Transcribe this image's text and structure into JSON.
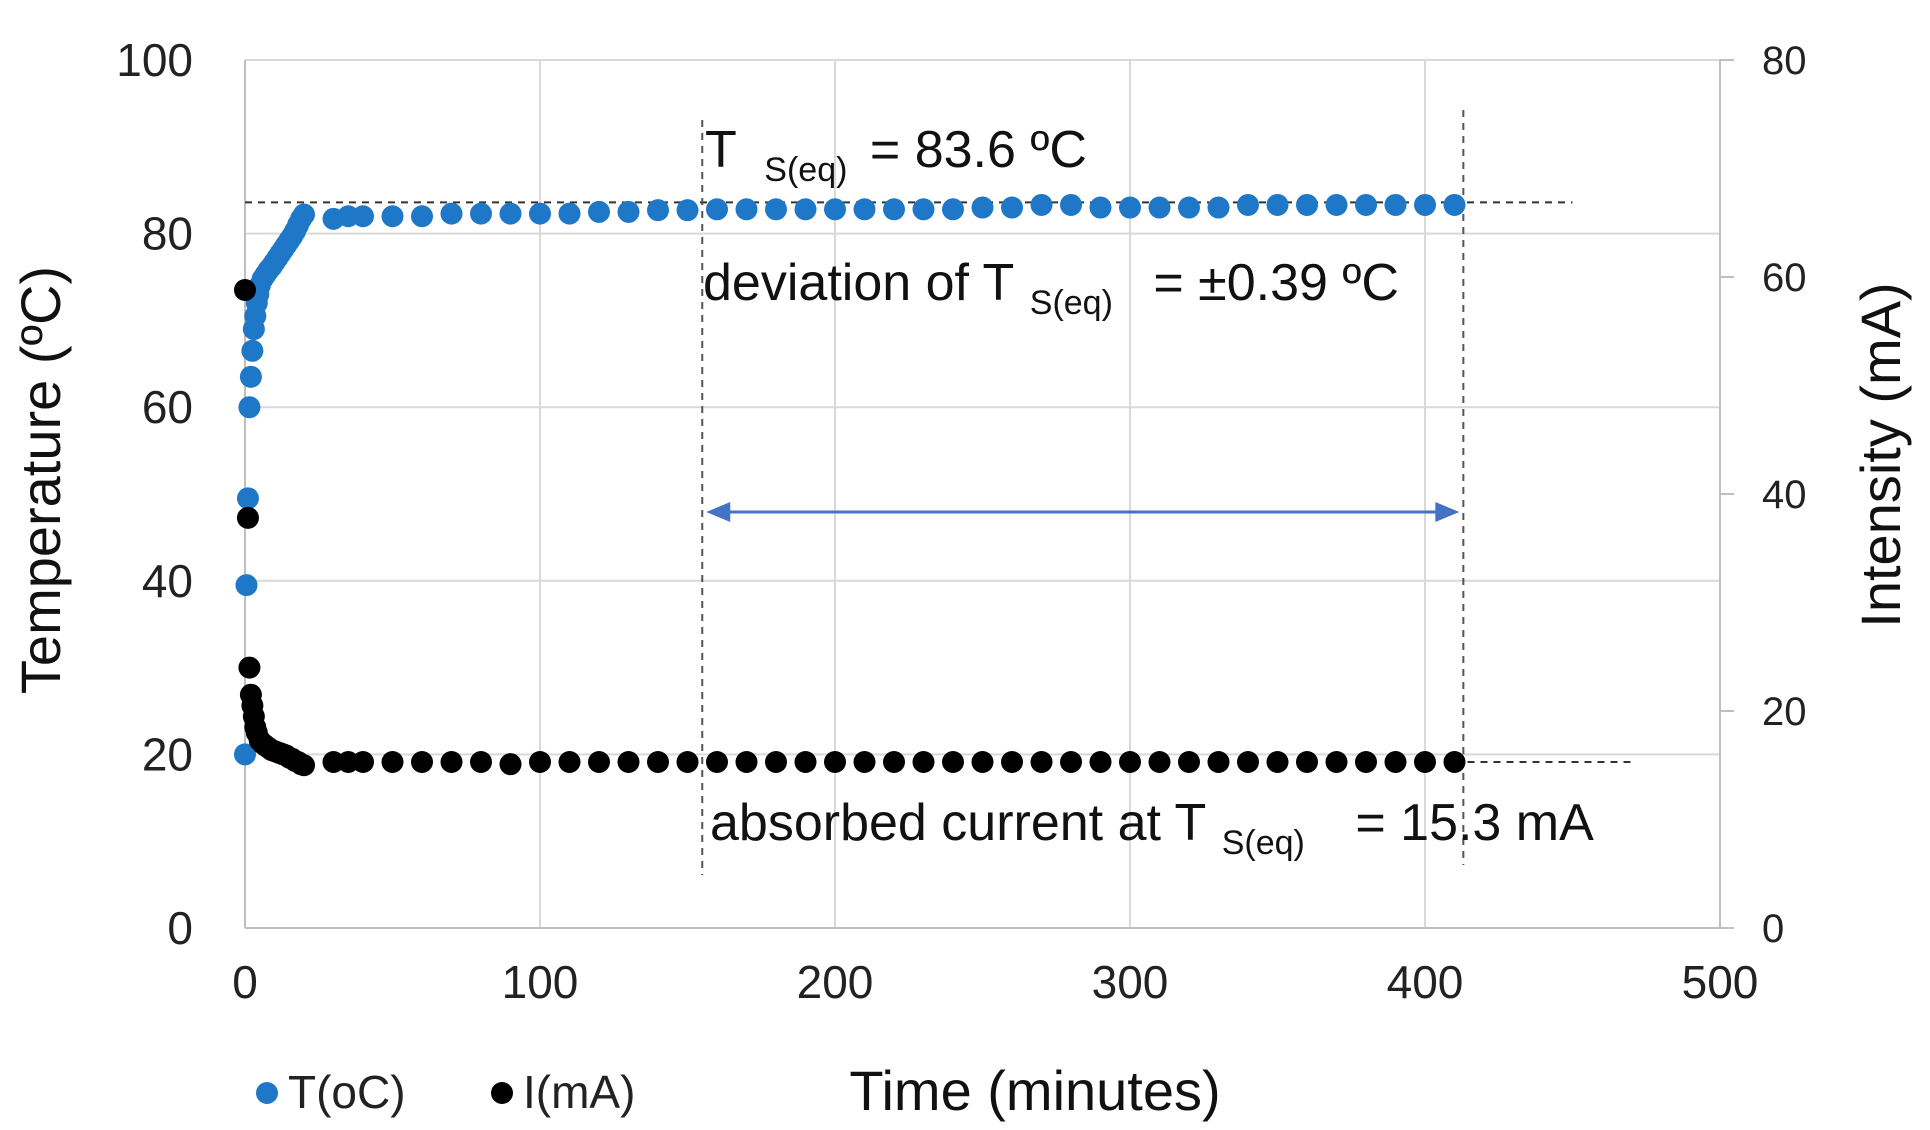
{
  "chart_data": {
    "type": "scatter",
    "xlabel": "Time (minutes)",
    "ylabel_left": "Temperature (ºC)",
    "ylabel_right": "Intensity (mA)",
    "xlim": [
      0,
      500
    ],
    "ylim_left": [
      0,
      100
    ],
    "ylim_right": [
      0,
      80
    ],
    "x_ticks": [
      "0",
      "100",
      "200",
      "300",
      "400",
      "500"
    ],
    "y_left_ticks": [
      "0",
      "20",
      "40",
      "60",
      "80",
      "100"
    ],
    "y_right_ticks": [
      "0",
      "20",
      "40",
      "60",
      "80"
    ],
    "grid": true,
    "legend_position": "bottom-left",
    "series": [
      {
        "name": "T(oC)",
        "color": "#1f77c8",
        "axis": "left",
        "x": [
          0,
          0.5,
          1,
          1.5,
          2,
          2.5,
          3,
          3.5,
          4,
          4.5,
          5,
          6,
          7,
          8,
          9,
          10,
          11,
          12,
          13,
          14,
          15,
          16,
          17,
          18,
          19,
          20,
          30,
          35,
          40,
          50,
          60,
          70,
          80,
          90,
          100,
          110,
          120,
          130,
          140,
          150,
          160,
          170,
          180,
          190,
          200,
          210,
          220,
          230,
          240,
          250,
          260,
          270,
          280,
          290,
          300,
          310,
          320,
          330,
          340,
          350,
          360,
          370,
          380,
          390,
          400,
          410
        ],
        "y": [
          20,
          39.5,
          49.5,
          60,
          63.5,
          66.5,
          69,
          70.5,
          72,
          73,
          74,
          74.8,
          75.3,
          75.8,
          76.2,
          76.7,
          77.2,
          77.7,
          78.2,
          78.7,
          79.2,
          79.7,
          80.3,
          81,
          81.7,
          82.2,
          81.7,
          82,
          82,
          82,
          82,
          82.3,
          82.3,
          82.3,
          82.3,
          82.3,
          82.5,
          82.5,
          82.7,
          82.7,
          82.8,
          82.8,
          82.8,
          82.8,
          82.8,
          82.8,
          82.8,
          82.8,
          82.8,
          83,
          83,
          83.3,
          83.3,
          83,
          83,
          83,
          83,
          83,
          83.3,
          83.3,
          83.3,
          83.3,
          83.3,
          83.3,
          83.3,
          83.3
        ]
      },
      {
        "name": "I(mA)",
        "color": "#000000",
        "axis": "right",
        "x": [
          0,
          1,
          1.5,
          2,
          2.5,
          3,
          3.5,
          4,
          5,
          6,
          7,
          8,
          9,
          10,
          11,
          12,
          13,
          14,
          15,
          16,
          17,
          18,
          19,
          20,
          30,
          35,
          40,
          50,
          60,
          70,
          80,
          90,
          100,
          110,
          120,
          130,
          140,
          150,
          160,
          170,
          180,
          190,
          200,
          210,
          220,
          230,
          240,
          250,
          260,
          270,
          280,
          290,
          300,
          310,
          320,
          330,
          340,
          350,
          360,
          370,
          380,
          390,
          400,
          410
        ],
        "y": [
          58.8,
          37.8,
          24,
          21.5,
          20.5,
          19.5,
          18.5,
          18,
          17.3,
          17,
          16.8,
          16.6,
          16.4,
          16.3,
          16.2,
          16.1,
          16,
          15.9,
          15.7,
          15.6,
          15.4,
          15.3,
          15.1,
          15,
          15.3,
          15.3,
          15.3,
          15.3,
          15.3,
          15.3,
          15.3,
          15.1,
          15.3,
          15.3,
          15.3,
          15.3,
          15.3,
          15.3,
          15.3,
          15.3,
          15.3,
          15.3,
          15.3,
          15.3,
          15.3,
          15.3,
          15.3,
          15.3,
          15.3,
          15.3,
          15.3,
          15.3,
          15.3,
          15.3,
          15.3,
          15.3,
          15.3,
          15.3,
          15.3,
          15.3,
          15.3,
          15.3,
          15.3,
          15.3
        ]
      }
    ],
    "annotations": {
      "ts_eq": {
        "prefix": "T",
        "sub": "S(eq)",
        "suffix": "= 83.6 ºC"
      },
      "deviation": {
        "prefix": "deviation of T",
        "sub": "S(eq)",
        "suffix": "= ±0.39 ºC"
      },
      "current": {
        "prefix": "absorbed current  at T",
        "sub": "S(eq)",
        "suffix": "= 15.3 mA"
      },
      "ts_eq_value": 83.6,
      "current_value": 15.3,
      "stable_range_x": [
        155,
        413
      ],
      "ts_ref_line_x": [
        0,
        450
      ],
      "current_ref_line_x": [
        410,
        470
      ]
    },
    "legend": [
      {
        "label": "T(oC)",
        "color": "#1f77c8"
      },
      {
        "label": "I(mA)",
        "color": "#000000"
      }
    ]
  }
}
